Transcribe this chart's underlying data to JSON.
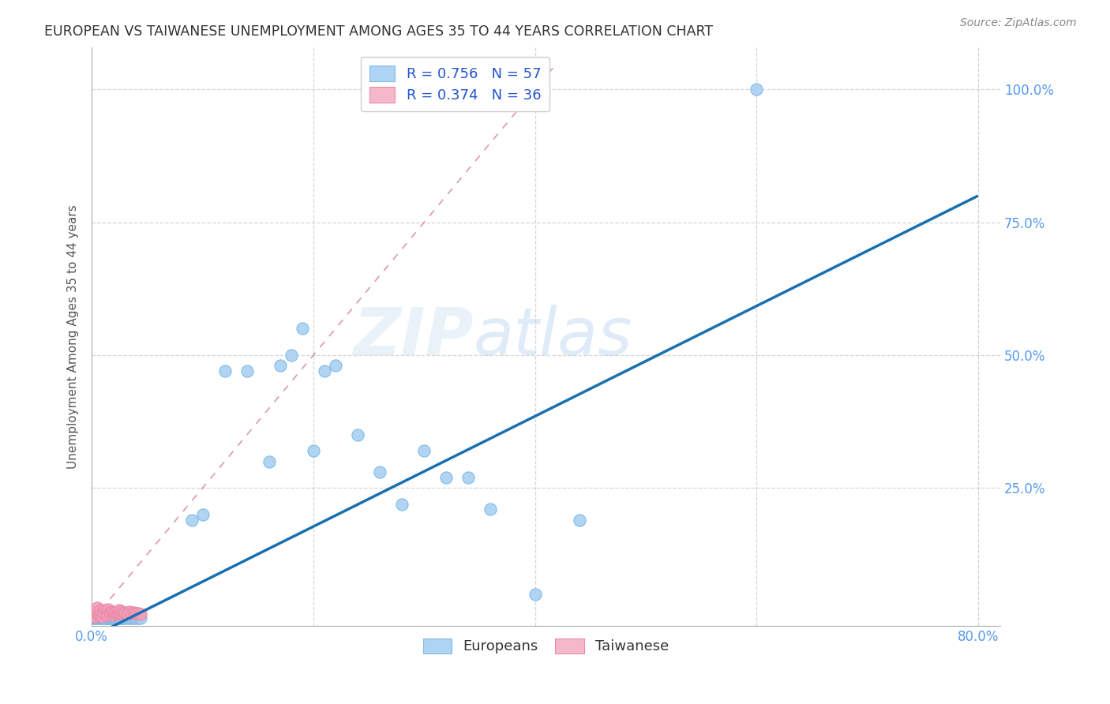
{
  "title": "EUROPEAN VS TAIWANESE UNEMPLOYMENT AMONG AGES 35 TO 44 YEARS CORRELATION CHART",
  "source": "Source: ZipAtlas.com",
  "ylabel": "Unemployment Among Ages 35 to 44 years",
  "background_color": "#ffffff",
  "grid_color": "#cccccc",
  "watermark_zip": "ZIP",
  "watermark_atlas": "atlas",
  "legend_r1": "R = 0.756",
  "legend_n1": "N = 57",
  "legend_r2": "R = 0.374",
  "legend_n2": "N = 36",
  "blue_scatter_color": "#a8d0f0",
  "pink_scatter_color": "#f4a0b8",
  "line_blue": "#1a6faf",
  "line_pink": "#d48090",
  "xlim": [
    0.0,
    0.82
  ],
  "ylim": [
    -0.01,
    1.08
  ],
  "eu_x": [
    0.001,
    0.002,
    0.003,
    0.004,
    0.005,
    0.006,
    0.007,
    0.008,
    0.009,
    0.01,
    0.011,
    0.012,
    0.013,
    0.014,
    0.015,
    0.016,
    0.017,
    0.018,
    0.019,
    0.02,
    0.021,
    0.022,
    0.023,
    0.024,
    0.025,
    0.026,
    0.027,
    0.028,
    0.03,
    0.032,
    0.034,
    0.036,
    0.038,
    0.04,
    0.042,
    0.044,
    0.09,
    0.1,
    0.12,
    0.14,
    0.16,
    0.17,
    0.18,
    0.19,
    0.2,
    0.21,
    0.22,
    0.24,
    0.26,
    0.28,
    0.3,
    0.32,
    0.34,
    0.36,
    0.4,
    0.44,
    0.6
  ],
  "eu_y": [
    0.005,
    0.005,
    0.005,
    0.005,
    0.005,
    0.005,
    0.005,
    0.005,
    0.005,
    0.005,
    0.005,
    0.005,
    0.005,
    0.005,
    0.005,
    0.005,
    0.005,
    0.005,
    0.005,
    0.005,
    0.005,
    0.005,
    0.005,
    0.005,
    0.005,
    0.005,
    0.005,
    0.005,
    0.005,
    0.005,
    0.005,
    0.005,
    0.005,
    0.005,
    0.005,
    0.005,
    0.19,
    0.2,
    0.47,
    0.47,
    0.3,
    0.48,
    0.5,
    0.55,
    0.32,
    0.47,
    0.48,
    0.35,
    0.28,
    0.22,
    0.32,
    0.27,
    0.27,
    0.21,
    0.05,
    0.19,
    1.0
  ],
  "tw_x": [
    0.001,
    0.002,
    0.003,
    0.004,
    0.005,
    0.006,
    0.007,
    0.008,
    0.009,
    0.01,
    0.011,
    0.012,
    0.013,
    0.014,
    0.015,
    0.016,
    0.017,
    0.018,
    0.019,
    0.02,
    0.021,
    0.022,
    0.023,
    0.024,
    0.025,
    0.026,
    0.027,
    0.028,
    0.03,
    0.032,
    0.034,
    0.036,
    0.038,
    0.04,
    0.042,
    0.044
  ],
  "tw_y": [
    0.01,
    0.015,
    0.008,
    0.018,
    0.025,
    0.012,
    0.015,
    0.02,
    0.008,
    0.016,
    0.02,
    0.015,
    0.018,
    0.012,
    0.022,
    0.016,
    0.015,
    0.018,
    0.012,
    0.016,
    0.015,
    0.018,
    0.014,
    0.016,
    0.02,
    0.015,
    0.018,
    0.014,
    0.016,
    0.015,
    0.018,
    0.014,
    0.016,
    0.015,
    0.014,
    0.013
  ],
  "blue_line_x": [
    0.0,
    0.8
  ],
  "blue_line_y": [
    0.0,
    0.8
  ],
  "pink_line_x0": 0.0,
  "pink_line_x1": 0.42,
  "pink_line_y0": 0.0,
  "pink_line_y1": 1.05
}
